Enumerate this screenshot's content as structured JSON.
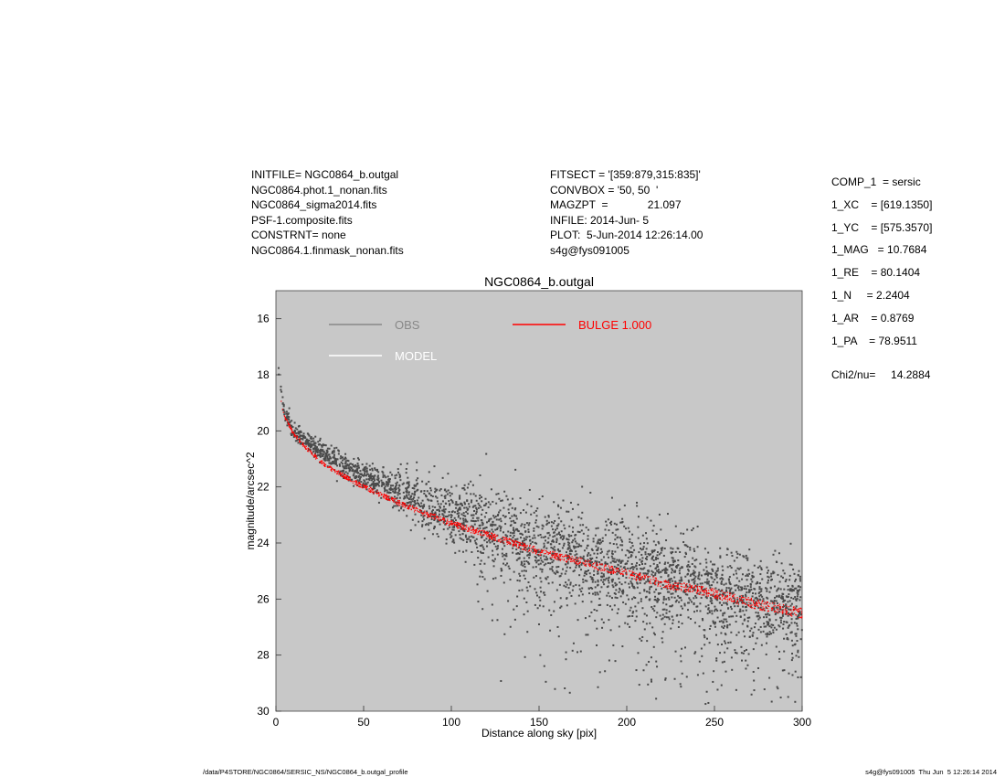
{
  "header": {
    "left_lines": [
      "INITFILE= NGC0864_b.outgal",
      "NGC0864.phot.1_nonan.fits",
      "NGC0864_sigma2014.fits",
      "PSF-1.composite.fits",
      "CONSTRNT= none",
      "NGC0864.1.finmask_nonan.fits"
    ],
    "middle_lines": [
      "FITSECT = '[359:879,315:835]'",
      "CONVBOX = '50, 50  '",
      "MAGZPT  =             21.097",
      "INFILE: 2014-Jun- 5",
      "PLOT:  5-Jun-2014 12:26:14.00",
      "s4g@fys091005"
    ],
    "right_lines": [
      "COMP_1  = sersic",
      "1_XC    = [619.1350]",
      "1_YC    = [575.3570]",
      "1_MAG   = 10.7684",
      "1_RE    = 80.1404",
      "1_N     = 2.2404",
      "1_AR    = 0.8769",
      "1_PA    = 78.9511"
    ],
    "chi2_line": "Chi2/nu=     14.2884"
  },
  "footer": {
    "left": "/data/P4STORE/NGC0864/SERSIC_NS/NGC0864_b.outgal_profile",
    "right": "s4g@fys091005  Thu Jun  5 12:26:14 2014"
  },
  "chart_data": {
    "type": "scatter",
    "title": "NGC0864_b.outgal",
    "xlabel": "Distance along sky [pix]",
    "ylabel": "magnitude/arcsec^2",
    "xlim": [
      0,
      300
    ],
    "ylim": [
      30,
      15
    ],
    "y_inverted": true,
    "x_ticks": [
      0,
      50,
      100,
      150,
      200,
      250,
      300
    ],
    "y_ticks": [
      16,
      18,
      20,
      22,
      24,
      26,
      28,
      30
    ],
    "grid": false,
    "background": "#c8c8c8",
    "legend": {
      "placement": "top",
      "entries": [
        {
          "label": "OBS",
          "color": "#888888"
        },
        {
          "label": "MODEL",
          "color": "#ffffff"
        },
        {
          "label": "BULGE  1.000",
          "color": "#ff0000"
        }
      ]
    },
    "series": [
      {
        "name": "OBS",
        "color": "#4a4a4a",
        "description_points": [
          [
            1,
            17.5
          ],
          [
            2,
            18.2
          ],
          [
            3,
            18.6
          ],
          [
            5,
            19.4
          ],
          [
            10,
            20.0
          ],
          [
            20,
            20.5
          ],
          [
            30,
            20.9
          ],
          [
            50,
            21.6
          ],
          [
            75,
            22.3
          ],
          [
            100,
            22.9
          ],
          [
            125,
            23.5
          ],
          [
            150,
            24.0
          ],
          [
            175,
            24.4
          ],
          [
            200,
            24.8
          ],
          [
            225,
            25.2
          ],
          [
            250,
            25.6
          ],
          [
            275,
            25.9
          ],
          [
            300,
            26.2
          ]
        ],
        "scatter_band": [
          [
            10,
            0.3
          ],
          [
            50,
            0.5
          ],
          [
            100,
            1.2
          ],
          [
            150,
            1.6
          ],
          [
            200,
            1.6
          ],
          [
            250,
            1.5
          ],
          [
            300,
            1.5
          ]
        ]
      },
      {
        "name": "BULGE  1.000",
        "color": "#ff0000",
        "curve_points": [
          [
            3,
            19.0
          ],
          [
            5,
            19.5
          ],
          [
            10,
            20.1
          ],
          [
            20,
            20.8
          ],
          [
            30,
            21.3
          ],
          [
            50,
            22.0
          ],
          [
            75,
            22.7
          ],
          [
            100,
            23.3
          ],
          [
            125,
            23.8
          ],
          [
            150,
            24.3
          ],
          [
            175,
            24.7
          ],
          [
            200,
            25.1
          ],
          [
            225,
            25.5
          ],
          [
            250,
            25.8
          ],
          [
            275,
            26.2
          ],
          [
            300,
            26.5
          ]
        ],
        "band_width": 0.25
      }
    ]
  }
}
